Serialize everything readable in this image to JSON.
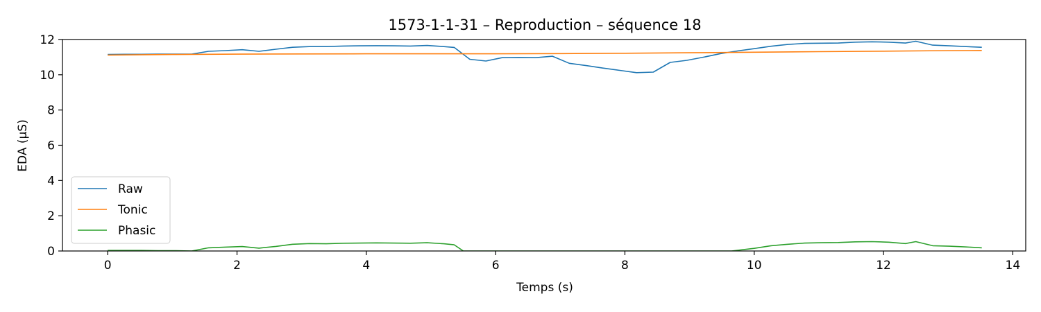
{
  "chart_data": {
    "type": "line",
    "title": "1573-1-1-31 – Reproduction – séquence 18",
    "xlabel": "Temps (s)",
    "ylabel": "EDA (µS)",
    "xlim": [
      -0.7,
      14.2
    ],
    "ylim": [
      0,
      12
    ],
    "xticks": [
      0,
      2,
      4,
      6,
      8,
      10,
      12,
      14
    ],
    "yticks": [
      0,
      2,
      4,
      6,
      8,
      10,
      12
    ],
    "grid": false,
    "legend_position": "lower-left",
    "series": [
      {
        "name": "Raw",
        "color": "#1f77b4",
        "x": [
          0,
          0.26,
          0.52,
          0.78,
          1.04,
          1.3,
          1.56,
          1.82,
          2.08,
          2.34,
          2.6,
          2.86,
          3.12,
          3.38,
          3.64,
          3.9,
          4.16,
          4.42,
          4.68,
          4.94,
          5.2,
          5.36,
          5.6,
          5.85,
          6.1,
          6.36,
          6.62,
          6.88,
          7.14,
          7.4,
          7.66,
          7.92,
          8.18,
          8.44,
          8.7,
          8.96,
          9.22,
          9.48,
          9.74,
          10.0,
          10.26,
          10.52,
          10.78,
          11.04,
          11.3,
          11.56,
          11.82,
          12.08,
          12.34,
          12.5,
          12.76,
          13.02,
          13.28,
          13.52
        ],
        "y": [
          11.15,
          11.16,
          11.16,
          11.17,
          11.17,
          11.17,
          11.33,
          11.37,
          11.42,
          11.33,
          11.45,
          11.56,
          11.6,
          11.6,
          11.63,
          11.64,
          11.65,
          11.64,
          11.63,
          11.66,
          11.6,
          11.55,
          10.88,
          10.78,
          10.97,
          10.98,
          10.97,
          11.05,
          10.65,
          10.52,
          10.38,
          10.25,
          10.12,
          10.15,
          10.7,
          10.82,
          11.0,
          11.2,
          11.35,
          11.48,
          11.62,
          11.72,
          11.78,
          11.79,
          11.8,
          11.85,
          11.87,
          11.85,
          11.8,
          11.9,
          11.68,
          11.64,
          11.6,
          11.56
        ]
      },
      {
        "name": "Tonic",
        "color": "#ff7f0e",
        "x": [
          0,
          1.0,
          2.0,
          3.0,
          4.0,
          5.0,
          6.0,
          7.0,
          8.0,
          9.0,
          10.0,
          11.0,
          12.0,
          13.0,
          13.52
        ],
        "y": [
          11.12,
          11.15,
          11.17,
          11.18,
          11.19,
          11.19,
          11.19,
          11.2,
          11.22,
          11.25,
          11.28,
          11.31,
          11.34,
          11.37,
          11.38
        ]
      },
      {
        "name": "Phasic",
        "color": "#2ca02c",
        "x": [
          0,
          0.26,
          0.52,
          0.78,
          1.04,
          1.3,
          1.56,
          1.82,
          2.08,
          2.34,
          2.6,
          2.86,
          3.12,
          3.38,
          3.64,
          3.9,
          4.16,
          4.42,
          4.68,
          4.94,
          5.2,
          5.36,
          5.5,
          6.0,
          7.0,
          8.0,
          9.0,
          9.65,
          10.0,
          10.26,
          10.52,
          10.78,
          11.04,
          11.3,
          11.56,
          11.82,
          12.08,
          12.34,
          12.5,
          12.76,
          13.02,
          13.28,
          13.52
        ],
        "y": [
          0.03,
          0.03,
          0.03,
          0.02,
          0.02,
          0.0,
          0.18,
          0.22,
          0.25,
          0.16,
          0.26,
          0.38,
          0.42,
          0.41,
          0.44,
          0.45,
          0.46,
          0.45,
          0.44,
          0.47,
          0.41,
          0.35,
          0.0,
          0.0,
          0.0,
          0.0,
          0.0,
          0.0,
          0.15,
          0.3,
          0.38,
          0.45,
          0.47,
          0.48,
          0.52,
          0.53,
          0.5,
          0.42,
          0.53,
          0.3,
          0.27,
          0.23,
          0.18
        ]
      }
    ]
  }
}
